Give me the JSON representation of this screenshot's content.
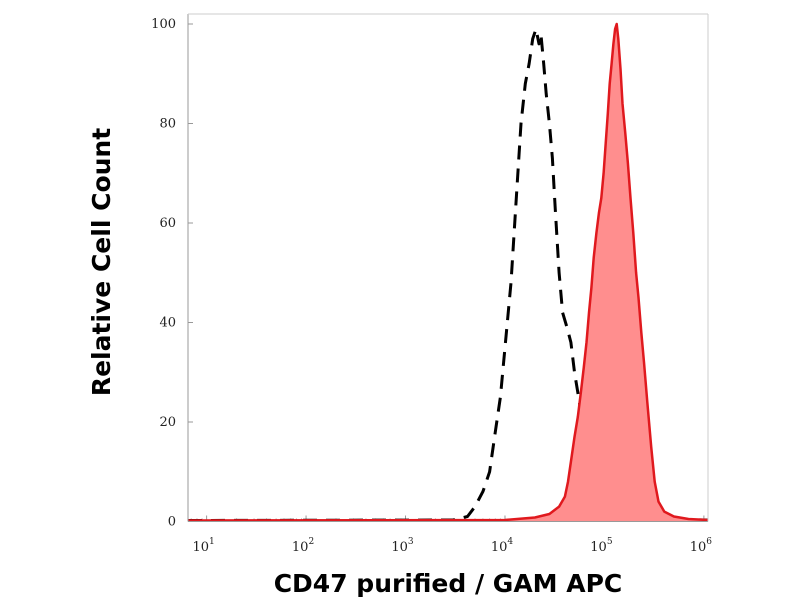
{
  "chart_data": {
    "type": "area",
    "title": "",
    "xlabel": "CD47 purified / GAM APC",
    "ylabel": "Relative Cell Count",
    "x_scale": "log",
    "xlim": [
      6.5,
      1100000
    ],
    "ylim": [
      0,
      100
    ],
    "grid": false,
    "legend": "none",
    "y_ticks": [
      {
        "value": 0,
        "label": "0"
      },
      {
        "value": 20,
        "label": "20"
      },
      {
        "value": 40,
        "label": "40"
      },
      {
        "value": 60,
        "label": "60"
      },
      {
        "value": 80,
        "label": "80"
      },
      {
        "value": 100,
        "label": "100"
      }
    ],
    "x_ticks": [
      {
        "value": 10,
        "base": "10",
        "exp": "1"
      },
      {
        "value": 100,
        "base": "10",
        "exp": "2"
      },
      {
        "value": 1000,
        "base": "10",
        "exp": "3"
      },
      {
        "value": 10000,
        "base": "10",
        "exp": "4"
      },
      {
        "value": 100000,
        "base": "10",
        "exp": "5"
      },
      {
        "value": 1000000,
        "base": "10",
        "exp": "6"
      }
    ],
    "series": [
      {
        "style": "dashed",
        "color": "#000000",
        "points": [
          [
            6.5,
            0.2
          ],
          [
            3000,
            0.3
          ],
          [
            4200,
            1
          ],
          [
            5000,
            3
          ],
          [
            6000,
            6
          ],
          [
            7000,
            10
          ],
          [
            8000,
            18
          ],
          [
            9000,
            25
          ],
          [
            10000,
            35
          ],
          [
            11500,
            48
          ],
          [
            13000,
            65
          ],
          [
            14500,
            80
          ],
          [
            16000,
            88
          ],
          [
            17500,
            92
          ],
          [
            19000,
            97
          ],
          [
            20500,
            99
          ],
          [
            22000,
            96
          ],
          [
            23000,
            98
          ],
          [
            24500,
            92
          ],
          [
            26000,
            86
          ],
          [
            28000,
            80
          ],
          [
            30000,
            73
          ],
          [
            32000,
            63
          ],
          [
            35000,
            50
          ],
          [
            38000,
            42
          ],
          [
            42000,
            39
          ],
          [
            46000,
            36
          ],
          [
            50000,
            30
          ],
          [
            56000,
            24
          ],
          [
            63000,
            16
          ],
          [
            72000,
            9
          ],
          [
            82000,
            6
          ],
          [
            95000,
            3
          ],
          [
            120000,
            1.5
          ],
          [
            150000,
            1
          ],
          [
            200000,
            0.7
          ],
          [
            300000,
            0.4
          ],
          [
            1100000,
            0.3
          ]
        ]
      },
      {
        "style": "filled",
        "color": "#e0191e",
        "fill": "#ff8e8e",
        "points": [
          [
            6.5,
            0.2
          ],
          [
            10000,
            0.3
          ],
          [
            20000,
            0.8
          ],
          [
            28000,
            1.5
          ],
          [
            35000,
            3
          ],
          [
            40000,
            5
          ],
          [
            43000,
            8
          ],
          [
            46000,
            12
          ],
          [
            50000,
            17
          ],
          [
            54000,
            21
          ],
          [
            58000,
            26
          ],
          [
            62000,
            31
          ],
          [
            66000,
            36
          ],
          [
            70000,
            42
          ],
          [
            74000,
            47
          ],
          [
            78000,
            53
          ],
          [
            83000,
            58
          ],
          [
            88000,
            62
          ],
          [
            93000,
            65
          ],
          [
            98000,
            70
          ],
          [
            103000,
            76
          ],
          [
            108000,
            82
          ],
          [
            113000,
            88
          ],
          [
            118000,
            92
          ],
          [
            123000,
            96
          ],
          [
            128000,
            99
          ],
          [
            133000,
            100
          ],
          [
            138000,
            97
          ],
          [
            145000,
            91
          ],
          [
            152000,
            84
          ],
          [
            162000,
            78
          ],
          [
            172000,
            72
          ],
          [
            183000,
            65
          ],
          [
            195000,
            58
          ],
          [
            208000,
            50
          ],
          [
            220000,
            45
          ],
          [
            235000,
            38
          ],
          [
            250000,
            32
          ],
          [
            270000,
            24
          ],
          [
            295000,
            15
          ],
          [
            320000,
            8
          ],
          [
            350000,
            4
          ],
          [
            400000,
            2
          ],
          [
            500000,
            1
          ],
          [
            700000,
            0.5
          ],
          [
            1100000,
            0.3
          ]
        ]
      }
    ]
  }
}
